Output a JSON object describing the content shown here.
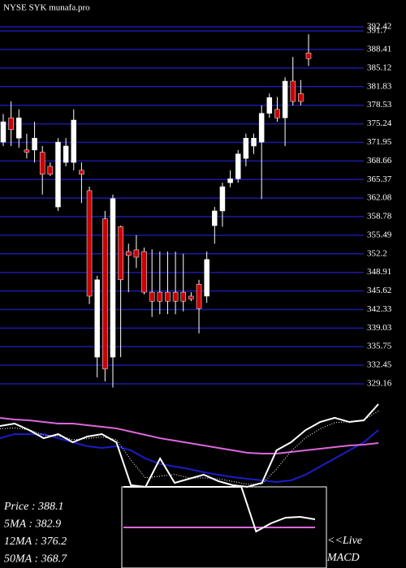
{
  "chart_data": {
    "type": "candlestick",
    "title": "NYSE SYK munafa.pro",
    "up_color": "#ffffff",
    "down_color": "#cc0000",
    "grid_color": "#1a1aa8",
    "ylim": [
      327.44,
      397.18
    ],
    "yticks": [
      392.42,
      391.7,
      388.41,
      385.12,
      381.83,
      378.53,
      375.24,
      371.95,
      368.66,
      365.37,
      362.08,
      358.78,
      355.49,
      352.2,
      348.91,
      345.62,
      342.33,
      339.03,
      335.75,
      332.45,
      329.16
    ],
    "candles": [
      {
        "open": 372.0,
        "high": 377.0,
        "low": 371.3,
        "close": 375.6
      },
      {
        "open": 376.3,
        "high": 379.2,
        "low": 371.3,
        "close": 374.2
      },
      {
        "open": 372.7,
        "high": 377.8,
        "low": 371.0,
        "close": 376.3
      },
      {
        "open": 370.6,
        "high": 373.5,
        "low": 369.1,
        "close": 370.2
      },
      {
        "open": 370.6,
        "high": 375.6,
        "low": 368.4,
        "close": 372.7
      },
      {
        "open": 370.2,
        "high": 371.3,
        "low": 362.7,
        "close": 366.3
      },
      {
        "open": 367.7,
        "high": 368.4,
        "low": 366.0,
        "close": 366.3
      },
      {
        "open": 360.5,
        "high": 372.7,
        "low": 359.8,
        "close": 372.0
      },
      {
        "open": 368.4,
        "high": 372.7,
        "low": 367.7,
        "close": 371.3
      },
      {
        "open": 368.4,
        "high": 377.8,
        "low": 367.0,
        "close": 375.9
      },
      {
        "open": 367.0,
        "high": 368.4,
        "low": 361.2,
        "close": 366.3
      },
      {
        "open": 363.4,
        "high": 364.1,
        "low": 343.3,
        "close": 344.7
      },
      {
        "open": 333.9,
        "high": 348.3,
        "low": 330.3,
        "close": 347.6
      },
      {
        "open": 358.4,
        "high": 359.8,
        "low": 329.6,
        "close": 331.8
      },
      {
        "open": 333.9,
        "high": 362.7,
        "low": 328.5,
        "close": 362.0
      },
      {
        "open": 357.0,
        "high": 357.2,
        "low": 333.9,
        "close": 347.6
      },
      {
        "open": 352.6,
        "high": 354.0,
        "low": 345.4,
        "close": 351.9
      },
      {
        "open": 352.9,
        "high": 355.5,
        "low": 349.7,
        "close": 351.6
      },
      {
        "open": 352.6,
        "high": 353.3,
        "low": 345.0,
        "close": 345.4
      },
      {
        "open": 345.4,
        "high": 353.0,
        "low": 341.0,
        "close": 343.8
      },
      {
        "open": 345.4,
        "high": 352.6,
        "low": 341.5,
        "close": 343.8
      },
      {
        "open": 345.4,
        "high": 352.6,
        "low": 341.5,
        "close": 343.8
      },
      {
        "open": 345.4,
        "high": 352.6,
        "low": 341.5,
        "close": 343.8
      },
      {
        "open": 345.4,
        "high": 352.2,
        "low": 342.0,
        "close": 343.8
      },
      {
        "open": 344.7,
        "high": 345.4,
        "low": 343.8,
        "close": 344.2
      },
      {
        "open": 346.8,
        "high": 347.6,
        "low": 338.1,
        "close": 342.5
      },
      {
        "open": 344.7,
        "high": 352.6,
        "low": 343.5,
        "close": 351.2
      },
      {
        "open": 357.2,
        "high": 360.5,
        "low": 354.0,
        "close": 359.8
      },
      {
        "open": 359.8,
        "high": 364.8,
        "low": 357.0,
        "close": 364.1
      },
      {
        "open": 364.8,
        "high": 367.0,
        "low": 364.0,
        "close": 365.5
      },
      {
        "open": 365.5,
        "high": 370.6,
        "low": 364.8,
        "close": 369.9
      },
      {
        "open": 369.1,
        "high": 373.5,
        "low": 367.7,
        "close": 372.7
      },
      {
        "open": 371.3,
        "high": 373.5,
        "low": 369.9,
        "close": 372.7
      },
      {
        "open": 372.0,
        "high": 378.5,
        "low": 361.9,
        "close": 377.1
      },
      {
        "open": 377.1,
        "high": 380.6,
        "low": 376.3,
        "close": 379.9
      },
      {
        "open": 377.8,
        "high": 380.0,
        "low": 375.6,
        "close": 376.3
      },
      {
        "open": 376.3,
        "high": 383.5,
        "low": 371.3,
        "close": 382.8
      },
      {
        "open": 382.8,
        "high": 387.1,
        "low": 378.5,
        "close": 379.2
      },
      {
        "open": 380.6,
        "high": 383.0,
        "low": 378.5,
        "close": 379.2
      },
      {
        "open": 387.8,
        "high": 391.1,
        "low": 385.5,
        "close": 386.8
      }
    ],
    "indicator": {
      "ylim": [
        0,
        100
      ],
      "series": [
        {
          "color": "#1c1ccc",
          "values": [
            54.5,
            59.1,
            59.1,
            59.1,
            54.5,
            50,
            45.5,
            43.6,
            45.5,
            40.9,
            31.8,
            25.5,
            22.7,
            20,
            16.4,
            13.6,
            10.9,
            9.1,
            7.3,
            5.5,
            7.3,
            13.6,
            22.7,
            31.8,
            40.9,
            50,
            63.6
          ]
        },
        {
          "color": "#dd66dd",
          "values": [
            77.3,
            75.5,
            74.5,
            72.7,
            70.9,
            70.9,
            69.1,
            67.3,
            65.5,
            61.8,
            58.2,
            54.5,
            51.8,
            49.1,
            46.4,
            43.6,
            40.9,
            38.2,
            37.3,
            37.3,
            39.1,
            40.9,
            42.7,
            44.5,
            46.4,
            47.3,
            49.1
          ]
        },
        {
          "color": "#ffffff",
          "dashed": true,
          "values": [
            65,
            66,
            64,
            58,
            57,
            53,
            54,
            56,
            53,
            30,
            10,
            12,
            14,
            10,
            10,
            9,
            6,
            3,
            3,
            20,
            40,
            55,
            65,
            72,
            73,
            75,
            85
          ]
        },
        {
          "color": "#ffffff",
          "values": [
            68.2,
            70.9,
            63.6,
            54.5,
            59.1,
            50,
            56.4,
            59.1,
            50,
            1.8,
            0,
            31.8,
            4.5,
            9.1,
            13.6,
            6.4,
            1.8,
            0,
            4.5,
            40.9,
            50,
            63.6,
            72.7,
            77.3,
            72.7,
            74.5,
            92.7
          ]
        }
      ]
    },
    "macd": {
      "ylim": [
        0,
        100
      ],
      "series": [
        {
          "color": "#dd66dd",
          "values": [
            50,
            50,
            50,
            50,
            50,
            50,
            50,
            50,
            50,
            50,
            50,
            50,
            50,
            50
          ]
        },
        {
          "color": "#ffffff",
          "values": [
            100,
            100,
            100,
            100,
            100,
            100,
            100,
            100,
            100,
            45,
            55,
            62,
            63,
            60
          ]
        }
      ]
    },
    "info": [
      "Price   : 388.1",
      "5MA    : 382.9",
      "12MA  : 376.2",
      "50MA  : 368.7"
    ],
    "live": "<<Live",
    "macd_label": "MACD"
  }
}
